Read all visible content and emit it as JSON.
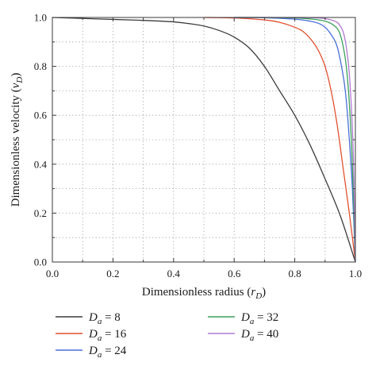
{
  "chart_data": {
    "type": "line",
    "title": "",
    "xlabel_main": "Dimensionless radius (",
    "xlabel_var": "r",
    "xlabel_sub": "D",
    "xlabel_tail": ")",
    "ylabel_main": "Dimensionless velocity (",
    "ylabel_var": "v",
    "ylabel_sub": "D",
    "ylabel_tail": ")",
    "xlim": [
      0,
      1
    ],
    "ylim": [
      0,
      1
    ],
    "x_ticks": [
      "0.0",
      "0.2",
      "0.4",
      "0.6",
      "0.8",
      "1.0"
    ],
    "y_ticks": [
      "0.0",
      "0.2",
      "0.4",
      "0.6",
      "0.8",
      "1.0"
    ],
    "grid": true,
    "legend_position": "bottom",
    "legend_var": "D",
    "legend_sub": "a",
    "series": [
      {
        "name": "= 8",
        "color": "#3c3c3c",
        "x": [
          0,
          0.1,
          0.2,
          0.3,
          0.4,
          0.45,
          0.5,
          0.55,
          0.6,
          0.65,
          0.7,
          0.75,
          0.8,
          0.85,
          0.9,
          0.95,
          1.0
        ],
        "y": [
          1.0,
          0.996,
          0.992,
          0.988,
          0.982,
          0.975,
          0.965,
          0.947,
          0.92,
          0.875,
          0.8,
          0.7,
          0.6,
          0.48,
          0.34,
          0.19,
          0.0
        ]
      },
      {
        "name": "= 16",
        "color": "#e0502f",
        "x": [
          0.5,
          0.6,
          0.7,
          0.75,
          0.8,
          0.83,
          0.86,
          0.88,
          0.9,
          0.92,
          0.94,
          0.96,
          0.98,
          1.0
        ],
        "y": [
          1.0,
          0.998,
          0.99,
          0.98,
          0.96,
          0.94,
          0.9,
          0.86,
          0.8,
          0.7,
          0.56,
          0.38,
          0.2,
          0.0
        ]
      },
      {
        "name": "= 24",
        "color": "#4a6fd8",
        "x": [
          0.6,
          0.7,
          0.8,
          0.85,
          0.88,
          0.9,
          0.92,
          0.94,
          0.96,
          0.97,
          0.98,
          0.99,
          1.0
        ],
        "y": [
          1.0,
          0.999,
          0.993,
          0.985,
          0.975,
          0.96,
          0.93,
          0.88,
          0.76,
          0.66,
          0.5,
          0.3,
          0.0
        ]
      },
      {
        "name": "= 32",
        "color": "#3aa05a",
        "x": [
          0.6,
          0.7,
          0.8,
          0.86,
          0.9,
          0.92,
          0.94,
          0.95,
          0.96,
          0.97,
          0.98,
          0.99,
          1.0
        ],
        "y": [
          1.0,
          1.0,
          0.998,
          0.993,
          0.985,
          0.975,
          0.955,
          0.93,
          0.88,
          0.8,
          0.65,
          0.4,
          0.0
        ]
      },
      {
        "name": "= 40",
        "color": "#b07bd0",
        "x": [
          0.6,
          0.7,
          0.8,
          0.88,
          0.92,
          0.94,
          0.95,
          0.96,
          0.97,
          0.98,
          0.99,
          0.995,
          1.0
        ],
        "y": [
          1.0,
          1.0,
          1.0,
          0.998,
          0.99,
          0.98,
          0.965,
          0.94,
          0.88,
          0.77,
          0.55,
          0.35,
          0.0
        ]
      }
    ]
  }
}
